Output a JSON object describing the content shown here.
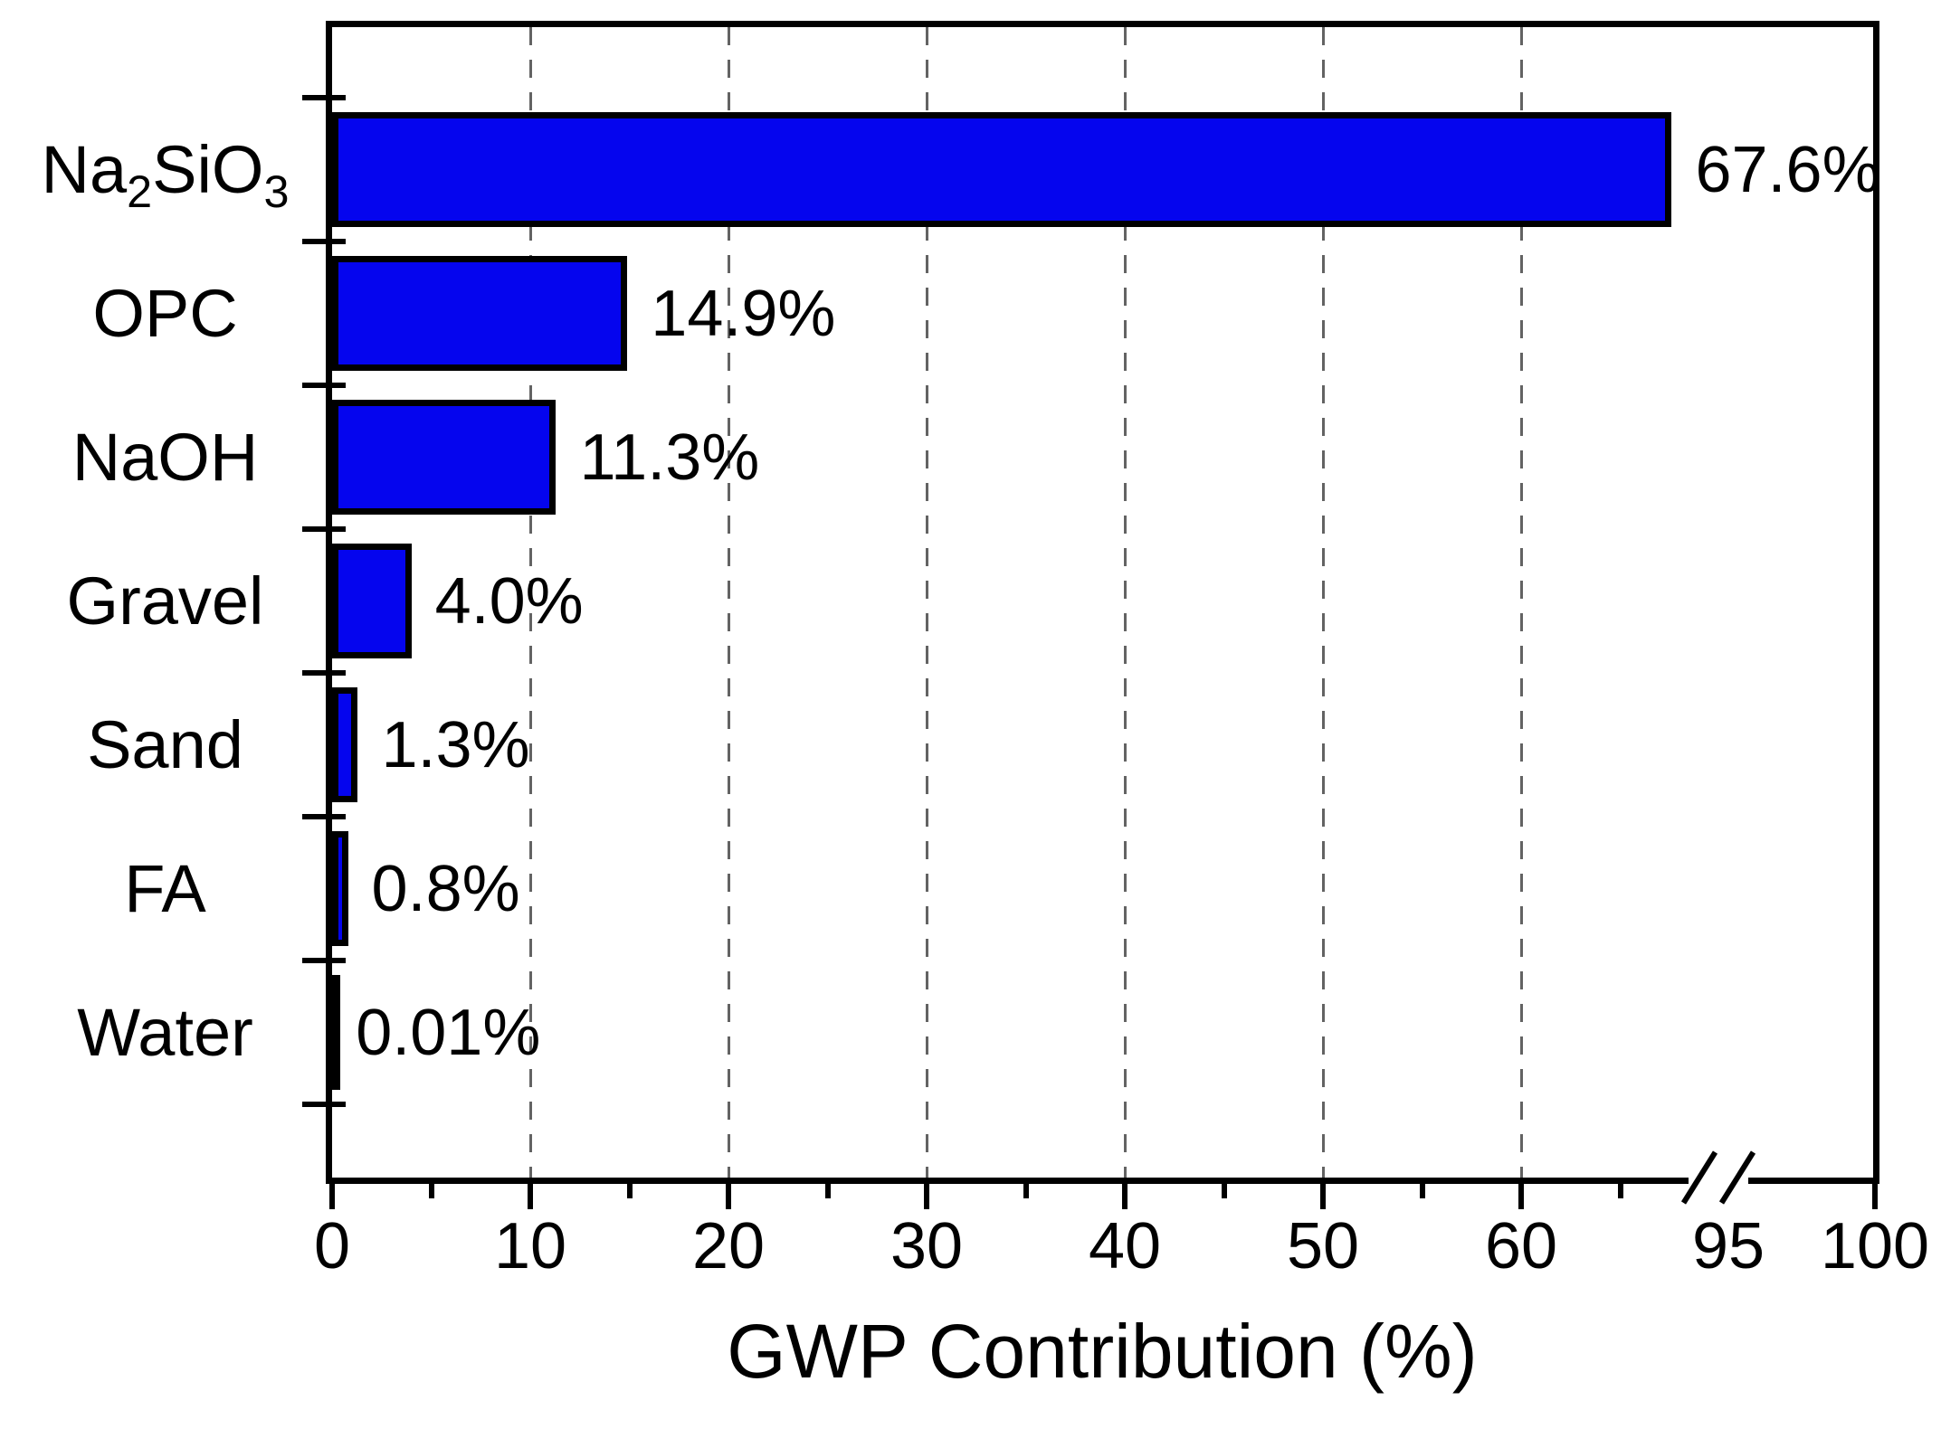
{
  "chart_data": {
    "type": "bar",
    "orientation": "horizontal",
    "title": "",
    "xlabel": "GWP Contribution (%)",
    "ylabel": "",
    "categories": [
      "Na₂SiO₃",
      "OPC",
      "NaOH",
      "Gravel",
      "Sand",
      "FA",
      "Water"
    ],
    "category_parts": [
      [
        {
          "text": "Na"
        },
        {
          "text": "2",
          "sub": true
        },
        {
          "text": "SiO"
        },
        {
          "text": "3",
          "sub": true
        }
      ],
      [
        {
          "text": "OPC"
        }
      ],
      [
        {
          "text": "NaOH"
        }
      ],
      [
        {
          "text": "Gravel"
        }
      ],
      [
        {
          "text": "Sand"
        }
      ],
      [
        {
          "text": "FA"
        }
      ],
      [
        {
          "text": "Water"
        }
      ]
    ],
    "values": [
      67.6,
      14.9,
      11.3,
      4.0,
      1.3,
      0.8,
      0.01
    ],
    "value_labels": [
      "67.6%",
      "14.9%",
      "11.3%",
      "4.0%",
      "1.3%",
      "0.8%",
      "0.01%"
    ],
    "x_axis": {
      "label": "GWP Contribution (%)",
      "ticks_major": [
        0,
        10,
        20,
        30,
        40,
        50,
        60
      ],
      "ticks_minor": [
        5,
        15,
        25,
        35,
        45,
        55,
        65
      ],
      "has_break": true,
      "ticks_after_break": [
        95,
        100
      ],
      "grid_values": [
        10,
        20,
        30,
        40,
        50,
        60
      ],
      "grid_style": "dashed",
      "xlim": [
        0,
        100
      ]
    },
    "legend": null,
    "grid": true,
    "colors": {
      "bar_fill": "#0505ee",
      "bar_border": "#000000",
      "grid": "#636363",
      "axis": "#000000",
      "text": "#000000",
      "background": "#ffffff"
    }
  }
}
